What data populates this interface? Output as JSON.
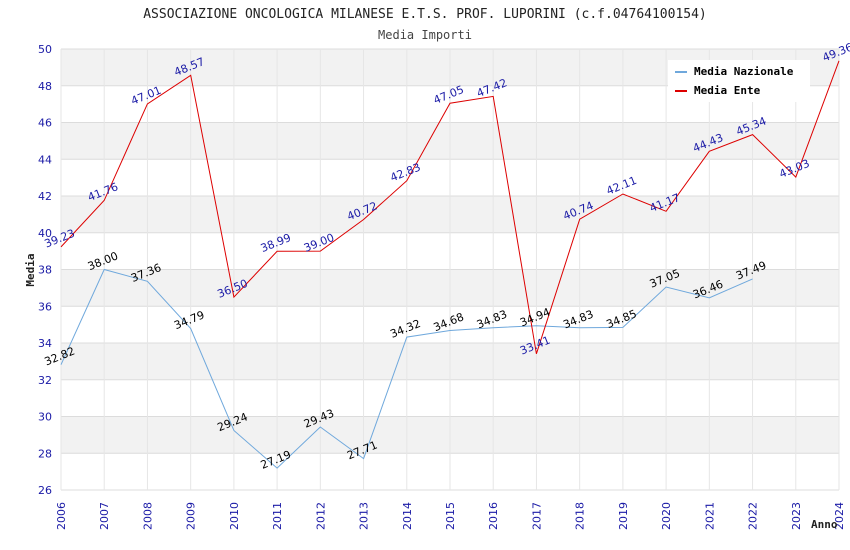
{
  "chart_data": {
    "type": "line",
    "title": "ASSOCIAZIONE ONCOLOGICA MILANESE E.T.S. PROF. LUPORINI (c.f.04764100154)",
    "subtitle": "Media Importi",
    "xlabel": "Anno",
    "ylabel": "Media",
    "ylim": [
      26,
      50
    ],
    "yticks": [
      "26",
      "28",
      "30",
      "32",
      "34",
      "36",
      "38",
      "40",
      "42",
      "44",
      "46",
      "48",
      "50"
    ],
    "x": [
      "2006",
      "2007",
      "2008",
      "2009",
      "2010",
      "2011",
      "2012",
      "2013",
      "2014",
      "2015",
      "2016",
      "2017",
      "2018",
      "2019",
      "2020",
      "2021",
      "2022",
      "2023",
      "2024"
    ],
    "grid": true,
    "legend_position": "top-right",
    "series": [
      {
        "name": "Media Nazionale",
        "color": "#6fa8dc",
        "values": [
          32.82,
          38.0,
          37.36,
          34.79,
          29.24,
          27.19,
          29.43,
          27.71,
          34.32,
          34.68,
          34.83,
          34.94,
          34.83,
          34.85,
          37.05,
          36.46,
          37.49,
          null,
          null
        ],
        "labels": [
          "32.82",
          "38.00",
          "37.36",
          "34.79",
          "29.24",
          "27.19",
          "29.43",
          "27.71",
          "34.32",
          "34.68",
          "34.83",
          "34.94",
          "34.83",
          "34.85",
          "37.05",
          "36.46",
          "37.49",
          null,
          null
        ]
      },
      {
        "name": "Media Ente",
        "color": "#dd0000",
        "values": [
          39.23,
          41.76,
          47.01,
          48.57,
          36.5,
          38.99,
          39.0,
          40.72,
          42.83,
          47.05,
          47.42,
          33.41,
          40.74,
          42.11,
          41.17,
          44.43,
          45.34,
          43.03,
          49.36
        ],
        "labels": [
          "39.23",
          "41.76",
          "47.01",
          "48.57",
          "36.50",
          "38.99",
          "39.00",
          "40.72",
          "42.83",
          "47.05",
          "47.42",
          "33.41",
          "40.74",
          "42.11",
          "41.17",
          "44.43",
          "45.34",
          "43.03",
          "49.36"
        ]
      }
    ]
  }
}
